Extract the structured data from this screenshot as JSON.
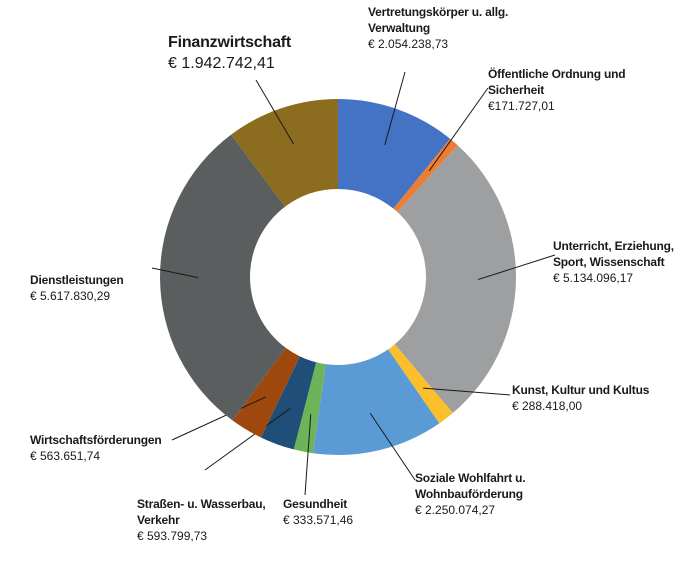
{
  "chart_data": {
    "type": "donut",
    "categories": [
      "Vertretungskörper u. allg. Verwaltung",
      "Öffentliche Ordnung und Sicherheit",
      "Unterricht, Erziehung, Sport, Wissenschaft",
      "Kunst, Kultur und Kultus",
      "Soziale Wohlfahrt u. Wohnbauförderung",
      "Gesundheit",
      "Straßen- u. Wasserbau, Verkehr",
      "Wirtschaftsförderungen",
      "Dienstleistungen",
      "Finanzwirtschaft"
    ],
    "values": [
      2054238.73,
      171727.01,
      5134096.17,
      288418.0,
      2250074.27,
      333571.46,
      593799.73,
      563651.74,
      5617830.29,
      1942742.41
    ],
    "value_labels": [
      "€ 2.054.238,73",
      "€171.727,01",
      "€ 5.134.096,17",
      "€ 288.418,00",
      "€ 2.250.074,27",
      "€ 333.571,46",
      "€ 593.799,73",
      "€ 563.651,74",
      "€ 5.617.830,29",
      "€ 1.942.742,41"
    ],
    "colors": [
      "#4472c4",
      "#ed7d31",
      "#9d9fa0",
      "#fbbf2b",
      "#5b9bd5",
      "#6db35a",
      "#1f4e79",
      "#9e480e",
      "#5b5e5e",
      "#8c6d1f"
    ]
  }
}
